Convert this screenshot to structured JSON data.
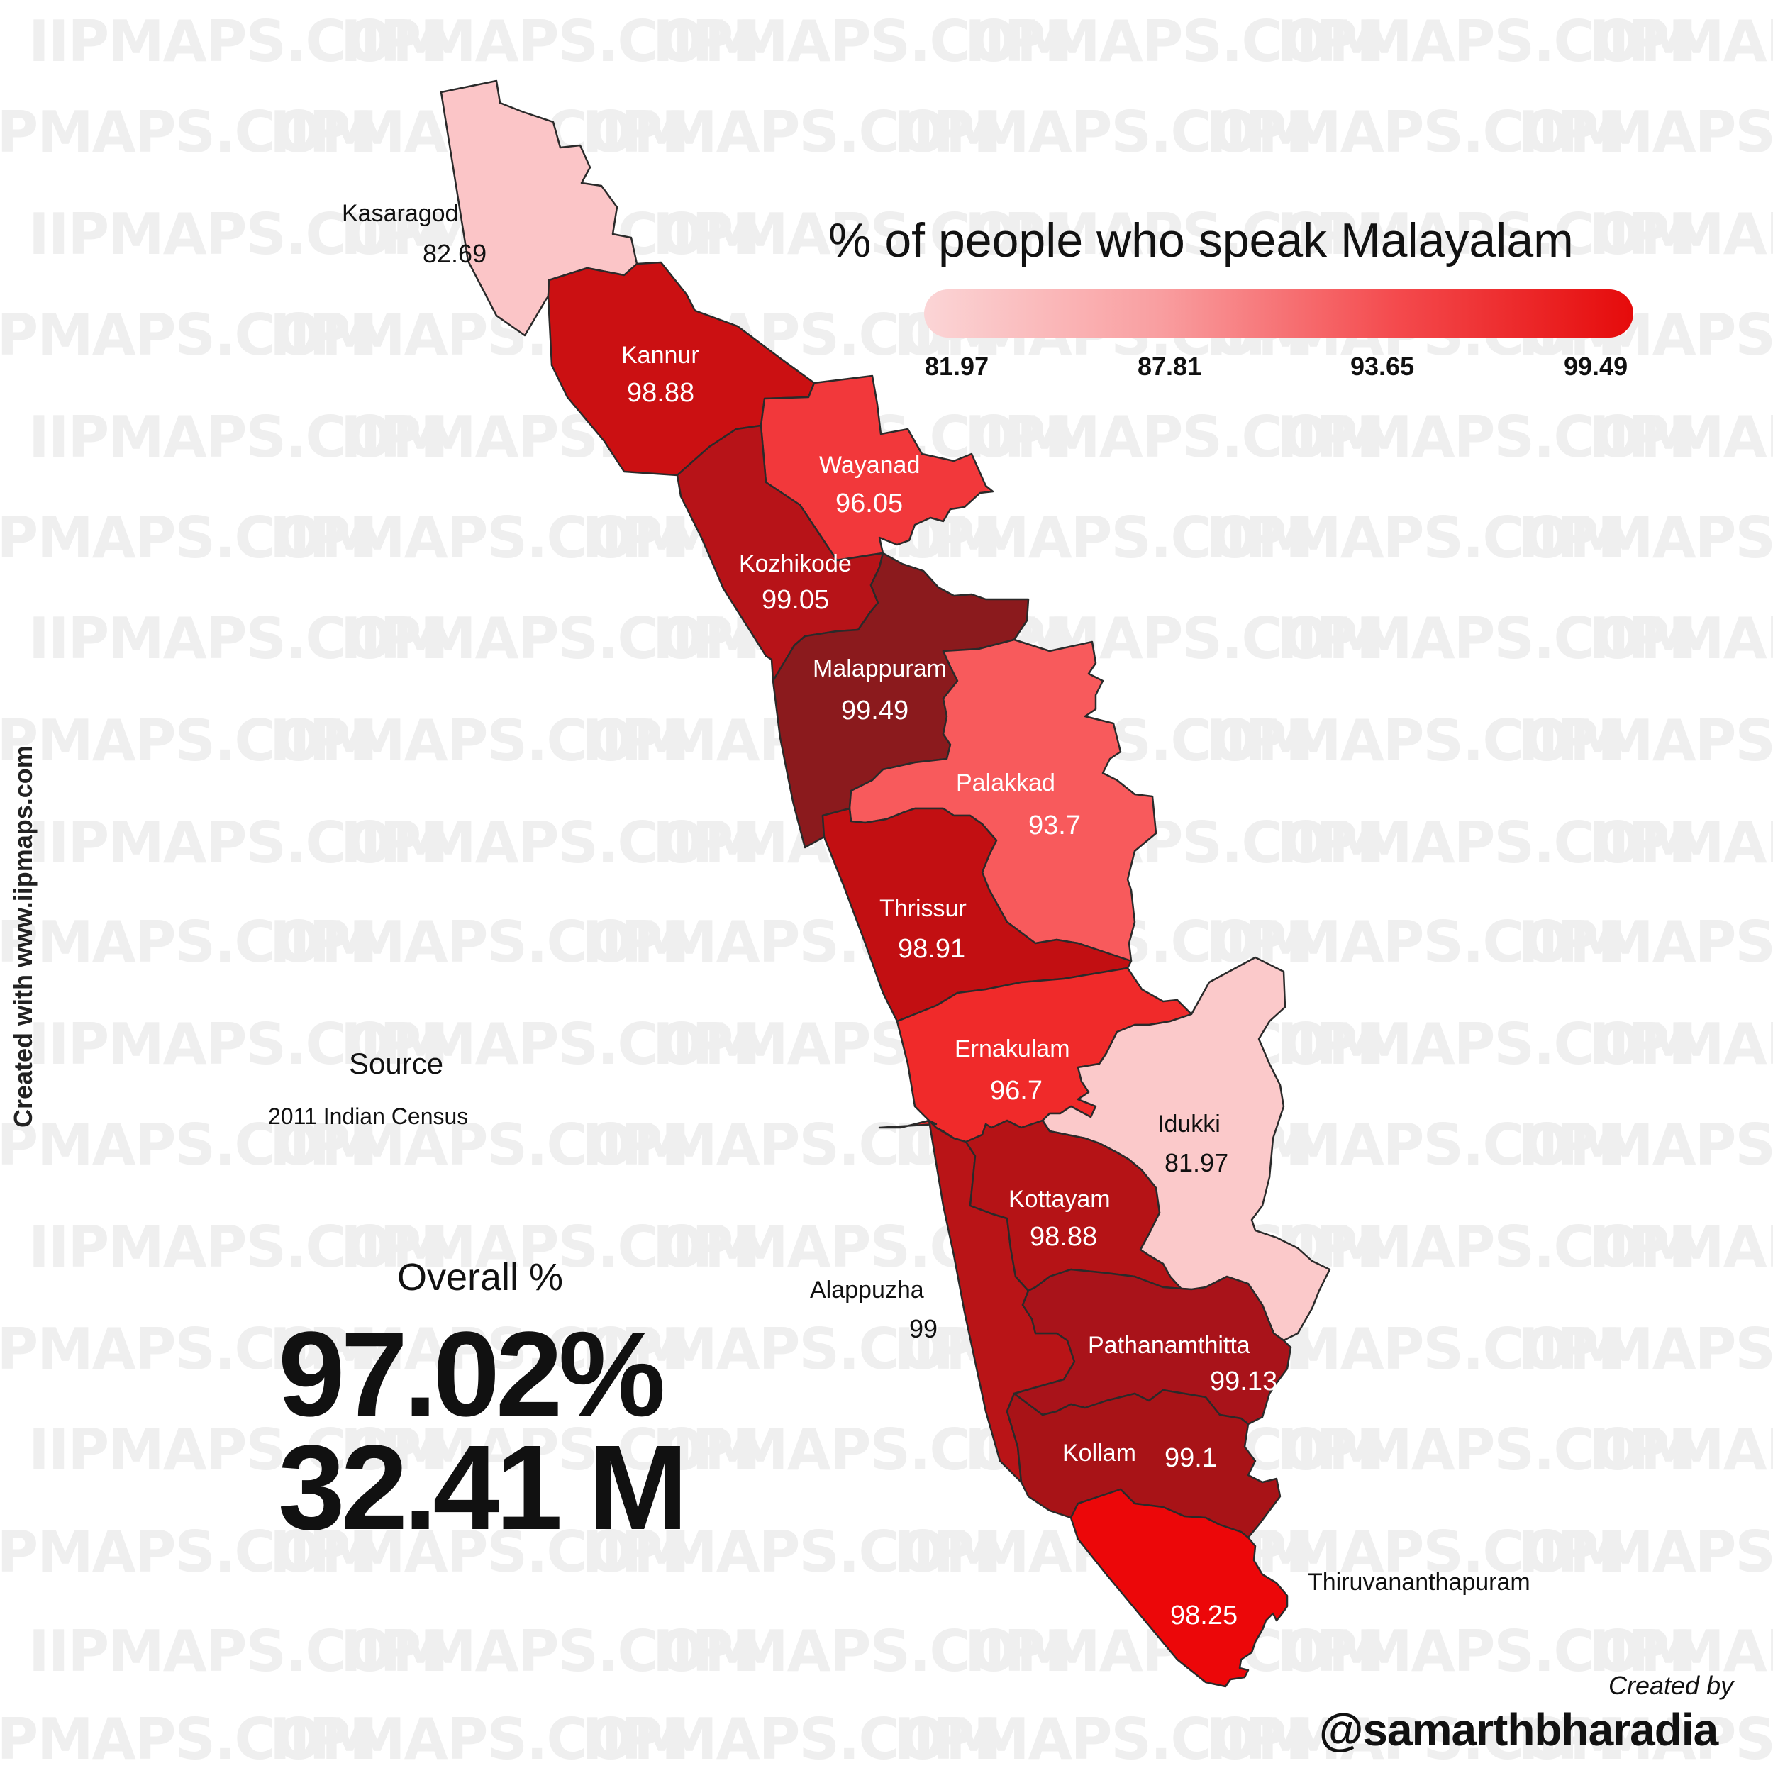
{
  "title": "% of people who speak Malayalam",
  "legend": {
    "ticks": [
      "81.97",
      "87.81",
      "93.65",
      "99.49"
    ],
    "min": 81.97,
    "max": 99.49,
    "colors": [
      "#fbd5d6",
      "#f99ea0",
      "#f44a4d",
      "#e50b0b"
    ]
  },
  "watermark": "IIPMAPS.COM",
  "districts": [
    {
      "name": "Kasaragod",
      "value": "82.69",
      "color": "#fbc5c7"
    },
    {
      "name": "Kannur",
      "value": "98.88",
      "color": "#cb1012"
    },
    {
      "name": "Wayanad",
      "value": "96.05",
      "color": "#f2383b"
    },
    {
      "name": "Kozhikode",
      "value": "99.05",
      "color": "#b71318"
    },
    {
      "name": "Malappuram",
      "value": "99.49",
      "color": "#8b1a1d"
    },
    {
      "name": "Palakkad",
      "value": "93.7",
      "color": "#f85a5c"
    },
    {
      "name": "Thrissur",
      "value": "98.91",
      "color": "#c20f12"
    },
    {
      "name": "Ernakulam",
      "value": "96.7",
      "color": "#f02a2a"
    },
    {
      "name": "Idukki",
      "value": "81.97",
      "color": "#fbc9ca"
    },
    {
      "name": "Alappuzha",
      "value": "99",
      "color": "#b91417"
    },
    {
      "name": "Kottayam",
      "value": "98.88",
      "color": "#b51316"
    },
    {
      "name": "Pathanamthitta",
      "value": "99.13",
      "color": "#a9131a"
    },
    {
      "name": "Kollam",
      "value": "99.1",
      "color": "#a81317"
    },
    {
      "name": "Thiruvananthapuram",
      "value": "98.25",
      "color": "#ec0709"
    }
  ],
  "source": {
    "title": "Source",
    "text": "2011 Indian Census"
  },
  "overall": {
    "label": "Overall %",
    "percent": "97.02%",
    "population": "32.41 M"
  },
  "credit": "Created with www.iipmaps.com",
  "author": {
    "created_by": "Created by",
    "handle": "@samarthbharadia"
  }
}
